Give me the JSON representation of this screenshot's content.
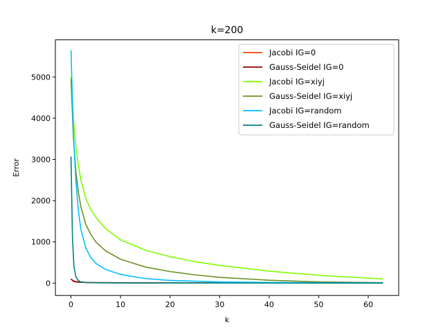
{
  "chart_data": {
    "type": "line",
    "title": "k=200",
    "xlabel": "k",
    "ylabel": "Error",
    "xlim": [
      -3.15,
      66.15
    ],
    "ylim": [
      -300,
      5900
    ],
    "xticks": [
      0,
      10,
      20,
      30,
      40,
      50,
      60
    ],
    "yticks": [
      0,
      1000,
      2000,
      3000,
      4000,
      5000
    ],
    "grid": false,
    "legend_position": "top-right",
    "series": [
      {
        "name": "Jacobi IG=0",
        "color": "#ff4500",
        "x": [
          0,
          0.5,
          1,
          2,
          3,
          5,
          10,
          20,
          40,
          63
        ],
        "y": [
          100,
          55,
          40,
          25,
          18,
          12,
          8,
          5,
          3,
          2
        ]
      },
      {
        "name": "Gauss-Seidel IG=0",
        "color": "#8b0000",
        "x": [
          0,
          0.5,
          1,
          2,
          3,
          5,
          10,
          20,
          40,
          63
        ],
        "y": [
          100,
          45,
          30,
          20,
          14,
          10,
          6,
          4,
          2,
          1
        ]
      },
      {
        "name": "Jacobi IG=xiyj",
        "color": "#7cfc00",
        "x": [
          0,
          0.5,
          1,
          1.5,
          2,
          3,
          4,
          5,
          7,
          10,
          15,
          20,
          25,
          30,
          40,
          50,
          63
        ],
        "y": [
          5000,
          3950,
          3300,
          2850,
          2500,
          2050,
          1780,
          1600,
          1320,
          1050,
          800,
          640,
          520,
          430,
          290,
          190,
          100
        ]
      },
      {
        "name": "Gauss-Seidel IG=xiyj",
        "color": "#6b8e23",
        "x": [
          0,
          0.5,
          1,
          1.5,
          2,
          3,
          4,
          5,
          7,
          10,
          15,
          20,
          25,
          30,
          40,
          50,
          63
        ],
        "y": [
          4950,
          3500,
          2700,
          2200,
          1850,
          1420,
          1180,
          1000,
          780,
          580,
          390,
          280,
          200,
          140,
          70,
          30,
          10
        ]
      },
      {
        "name": "Jacobi IG=random",
        "color": "#00bfff",
        "x": [
          0,
          0.5,
          1,
          1.5,
          2,
          3,
          4,
          5,
          7,
          10,
          15,
          20,
          30,
          40,
          50,
          63
        ],
        "y": [
          5650,
          3600,
          2450,
          1750,
          1300,
          850,
          620,
          480,
          330,
          210,
          110,
          65,
          30,
          15,
          8,
          5
        ]
      },
      {
        "name": "Gauss-Seidel IG=random",
        "color": "#008080",
        "x": [
          0,
          0.3,
          0.6,
          1,
          1.5,
          2,
          3,
          5,
          10,
          20,
          40,
          63
        ],
        "y": [
          3070,
          1100,
          400,
          150,
          60,
          30,
          15,
          8,
          4,
          2,
          1,
          0
        ]
      }
    ]
  }
}
